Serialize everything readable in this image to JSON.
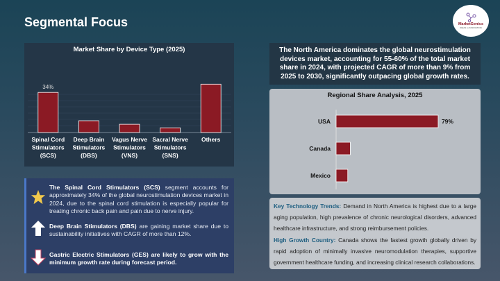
{
  "header": {
    "title": "Segmental Focus",
    "logo_text": "MarketGenics",
    "logo_subtext": "IDEAS to INNOVATION"
  },
  "left_chart": {
    "title": "Market Share by Device Type (2025)"
  },
  "insights": [
    {
      "icon": "star-icon",
      "bold": "The Spinal Cord Stimulators (SCS)",
      "text": " segment accounts for approximately 34% of the global neurostimulation devices market in 2024, due to the spinal cord stimulation is especially popular for treating chronic back pain and pain due to nerve injury."
    },
    {
      "icon": "arrow-up-icon",
      "bold": "Deep Brain Stimulators (DBS)",
      "text": " are gaining market share due to sustainability initiatives with CAGR of more than 12%."
    },
    {
      "icon": "arrow-down-icon",
      "bold": "Gastric Electric Stimulators (GES) are likely to grow with the minimum growth rate during forecast period.",
      "text": ""
    }
  ],
  "headline": "The North America dominates the global neurostimulation devices market, accounting for 55-60% of the total market share in 2024, with projected CAGR of more than 9% from 2025 to 2030, significantly outpacing global growth rates.",
  "right_chart": {
    "title": "Regional Share Analysis, 2025"
  },
  "notes": [
    {
      "label": "Key Technology Trends:",
      "text": " Demand in North America is highest due to a large aging population, high prevalence of chronic neurological disorders, advanced healthcare infrastructure, and strong reimbursement policies."
    },
    {
      "label": "High Growth Country:",
      "text": " Canada shows the fastest growth globally driven by rapid adoption of minimally invasive neuromodulation therapies, supportive government healthcare funding, and increasing clinical research collaborations."
    }
  ],
  "colors": {
    "bar": "#8b1a24",
    "accent_text": "#1d5e80"
  },
  "chart_data": [
    {
      "type": "bar",
      "title": "Market Share by Device Type (2025)",
      "categories": [
        [
          "Spinal Cord",
          "Stimulators",
          "(SCS)"
        ],
        [
          "Deep Brain",
          "Stimulators",
          "(DBS)"
        ],
        [
          "Vagus Nerve",
          "Stimulators",
          "(VNS)"
        ],
        [
          "Sacral Nerve",
          "Stimulators",
          "(SNS)"
        ],
        [
          "Others"
        ]
      ],
      "values": [
        34,
        10,
        7,
        4,
        41
      ],
      "data_labels": [
        "34%",
        "",
        "",
        "",
        ""
      ],
      "unit": "%",
      "grid": true
    },
    {
      "type": "bar",
      "orientation": "horizontal",
      "title": "Regional Share Analysis, 2025",
      "categories": [
        "USA",
        "Canada",
        "Mexico"
      ],
      "values": [
        79,
        11,
        9
      ],
      "data_labels": [
        "79%",
        "",
        ""
      ],
      "unit": "%",
      "grid": false
    }
  ]
}
